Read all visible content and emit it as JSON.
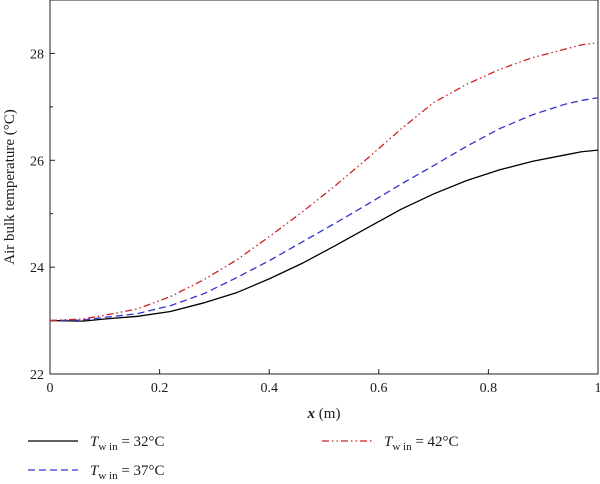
{
  "chart_data": {
    "type": "line",
    "title": "",
    "xlabel_var": "x",
    "xlabel_unit": " (m)",
    "ylabel": "Air bulk temperature (°C)",
    "xlim": [
      0,
      1
    ],
    "ylim": [
      22,
      29
    ],
    "x_ticks": [
      0,
      0.2,
      0.4,
      0.6,
      0.8,
      1
    ],
    "x_tick_labels": [
      "0",
      "0.2",
      "0.4",
      "0.6",
      "0.8",
      "1"
    ],
    "y_ticks": [
      22,
      24,
      26,
      28
    ],
    "y_tick_labels": [
      "22",
      "24",
      "26",
      "28"
    ],
    "grid": false,
    "legend_position": "bottom",
    "series": [
      {
        "key": "s32",
        "legend_var": "T",
        "legend_sub": "w in",
        "legend_rest": " = 32°C",
        "color": "#000000",
        "dash": "solid",
        "x": [
          0,
          0.06,
          0.1,
          0.16,
          0.22,
          0.28,
          0.34,
          0.4,
          0.46,
          0.52,
          0.58,
          0.64,
          0.7,
          0.76,
          0.82,
          0.88,
          0.94,
          0.97,
          1.0
        ],
        "y": [
          23.0,
          22.99,
          23.03,
          23.08,
          23.17,
          23.33,
          23.52,
          23.78,
          24.07,
          24.4,
          24.74,
          25.08,
          25.37,
          25.62,
          25.82,
          25.98,
          26.1,
          26.16,
          26.19
        ]
      },
      {
        "key": "s37",
        "legend_var": "T",
        "legend_sub": "w in",
        "legend_rest": " = 37°C",
        "color": "#3333cc",
        "dash": "dashed",
        "x": [
          0,
          0.06,
          0.1,
          0.16,
          0.22,
          0.28,
          0.34,
          0.4,
          0.46,
          0.52,
          0.58,
          0.64,
          0.7,
          0.76,
          0.82,
          0.88,
          0.94,
          0.97,
          1.0
        ],
        "y": [
          23.0,
          23.01,
          23.06,
          23.13,
          23.28,
          23.5,
          23.8,
          24.12,
          24.47,
          24.82,
          25.18,
          25.55,
          25.9,
          26.26,
          26.59,
          26.85,
          27.05,
          27.12,
          27.17
        ]
      },
      {
        "key": "s42",
        "legend_var": "T",
        "legend_sub": "w in",
        "legend_rest": " = 42°C",
        "color": "#cc2222",
        "dash": "dashdotdot",
        "x": [
          0,
          0.06,
          0.1,
          0.16,
          0.22,
          0.28,
          0.34,
          0.4,
          0.46,
          0.52,
          0.58,
          0.64,
          0.7,
          0.76,
          0.82,
          0.88,
          0.94,
          0.97,
          1.0
        ],
        "y": [
          23.0,
          23.03,
          23.1,
          23.22,
          23.45,
          23.76,
          24.13,
          24.57,
          25.03,
          25.52,
          26.04,
          26.58,
          27.08,
          27.42,
          27.7,
          27.92,
          28.08,
          28.16,
          28.2
        ]
      }
    ]
  }
}
